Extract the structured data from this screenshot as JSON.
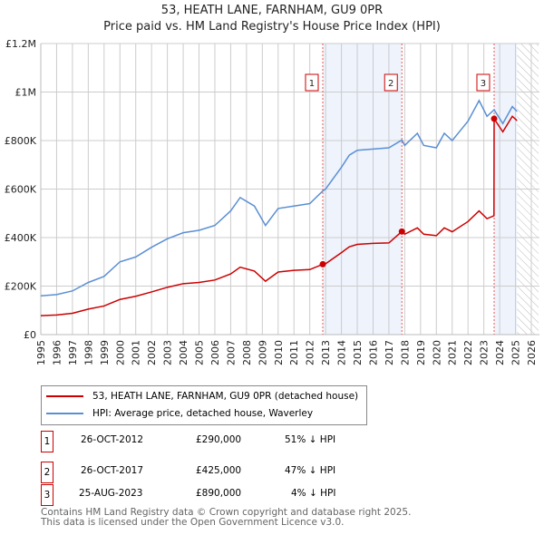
{
  "chart_data": {
    "type": "line",
    "title": "53, HEATH LANE, FARNHAM, GU9 0PR",
    "subtitle": "Price paid vs. HM Land Registry's House Price Index (HPI)",
    "xlim": [
      1995,
      2026
    ],
    "ylim": [
      0,
      1200000
    ],
    "x_ticks": [
      "1995",
      "1996",
      "1997",
      "1998",
      "1999",
      "2000",
      "2001",
      "2002",
      "2003",
      "2004",
      "2005",
      "2006",
      "2007",
      "2008",
      "2009",
      "2010",
      "2011",
      "2012",
      "2013",
      "2014",
      "2015",
      "2016",
      "2017",
      "2018",
      "2019",
      "2020",
      "2021",
      "2022",
      "2023",
      "2024",
      "2025",
      "2026"
    ],
    "y_ticks": [
      {
        "v": 0,
        "label": "£0"
      },
      {
        "v": 200000,
        "label": "£200K"
      },
      {
        "v": 400000,
        "label": "£400K"
      },
      {
        "v": 600000,
        "label": "£600K"
      },
      {
        "v": 800000,
        "label": "£800K"
      },
      {
        "v": 1000000,
        "label": "£1M"
      },
      {
        "v": 1200000,
        "label": "£1.2M"
      }
    ],
    "grid": true,
    "series": [
      {
        "name": "53, HEATH LANE, FARNHAM, GU9 0PR (detached house)",
        "color": "#cc0000",
        "x": [
          1995,
          1996,
          1997,
          1998,
          1999,
          2000,
          2001,
          2002,
          2003,
          2004,
          2005,
          2006,
          2007,
          2007.6,
          2008.5,
          2009.2,
          2010,
          2011,
          2012,
          2012.82,
          2013,
          2014,
          2014.5,
          2015,
          2016,
          2017,
          2017.82,
          2018,
          2018.8,
          2019.2,
          2020,
          2020.5,
          2021,
          2021.5,
          2022,
          2022.7,
          2023.2,
          2023.64,
          2023.65,
          2024.2,
          2024.8,
          2025.1
        ],
        "y": [
          78000,
          81000,
          88000,
          105000,
          118000,
          145000,
          158000,
          176000,
          195000,
          210000,
          215000,
          225000,
          250000,
          278000,
          262000,
          220000,
          258000,
          265000,
          268000,
          290000,
          292000,
          338000,
          362000,
          372000,
          376000,
          378000,
          425000,
          414000,
          440000,
          414000,
          408000,
          440000,
          424000,
          445000,
          466000,
          510000,
          478000,
          490000,
          890000,
          836000,
          900000,
          882000
        ]
      },
      {
        "name": "HPI: Average price, detached house, Waverley",
        "color": "#5b8fd4",
        "x": [
          1995,
          1996,
          1997,
          1998,
          1999,
          2000,
          2001,
          2002,
          2003,
          2004,
          2005,
          2006,
          2007,
          2007.6,
          2008.5,
          2009.2,
          2010,
          2011,
          2012,
          2012.82,
          2013,
          2014,
          2014.5,
          2015,
          2016,
          2017,
          2017.82,
          2018,
          2018.8,
          2019.2,
          2020,
          2020.5,
          2021,
          2021.5,
          2022,
          2022.7,
          2023.2,
          2023.65,
          2024.2,
          2024.8,
          2025.1
        ],
        "y": [
          160000,
          165000,
          180000,
          215000,
          240000,
          300000,
          320000,
          360000,
          395000,
          420000,
          430000,
          450000,
          510000,
          565000,
          530000,
          450000,
          520000,
          530000,
          540000,
          592000,
          600000,
          690000,
          740000,
          760000,
          765000,
          770000,
          802000,
          780000,
          830000,
          780000,
          770000,
          830000,
          800000,
          840000,
          880000,
          965000,
          900000,
          927000,
          870000,
          940000,
          920000
        ]
      }
    ],
    "sales": [
      {
        "id": "1",
        "x": 2012.82,
        "y": 290000
      },
      {
        "id": "2",
        "x": 2017.82,
        "y": 425000
      },
      {
        "id": "3",
        "x": 2023.65,
        "y": 890000
      }
    ],
    "shaded": [
      [
        2012.82,
        2017.82
      ],
      [
        2023.65,
        2025.1
      ]
    ],
    "hatched_from": 2025.1
  },
  "legend": {
    "property": "53, HEATH LANE, FARNHAM, GU9 0PR (detached house)",
    "hpi": "HPI: Average price, detached house, Waverley"
  },
  "transactions": [
    {
      "id": "1",
      "date": "26-OCT-2012",
      "price": "£290,000",
      "hpi": "51% ↓ HPI"
    },
    {
      "id": "2",
      "date": "26-OCT-2017",
      "price": "£425,000",
      "hpi": "47% ↓ HPI"
    },
    {
      "id": "3",
      "date": "25-AUG-2023",
      "price": "£890,000",
      "hpi": "4% ↓ HPI"
    }
  ],
  "footer": {
    "line1": "Contains HM Land Registry data © Crown copyright and database right 2025.",
    "line2": "This data is licensed under the Open Government Licence v3.0."
  }
}
